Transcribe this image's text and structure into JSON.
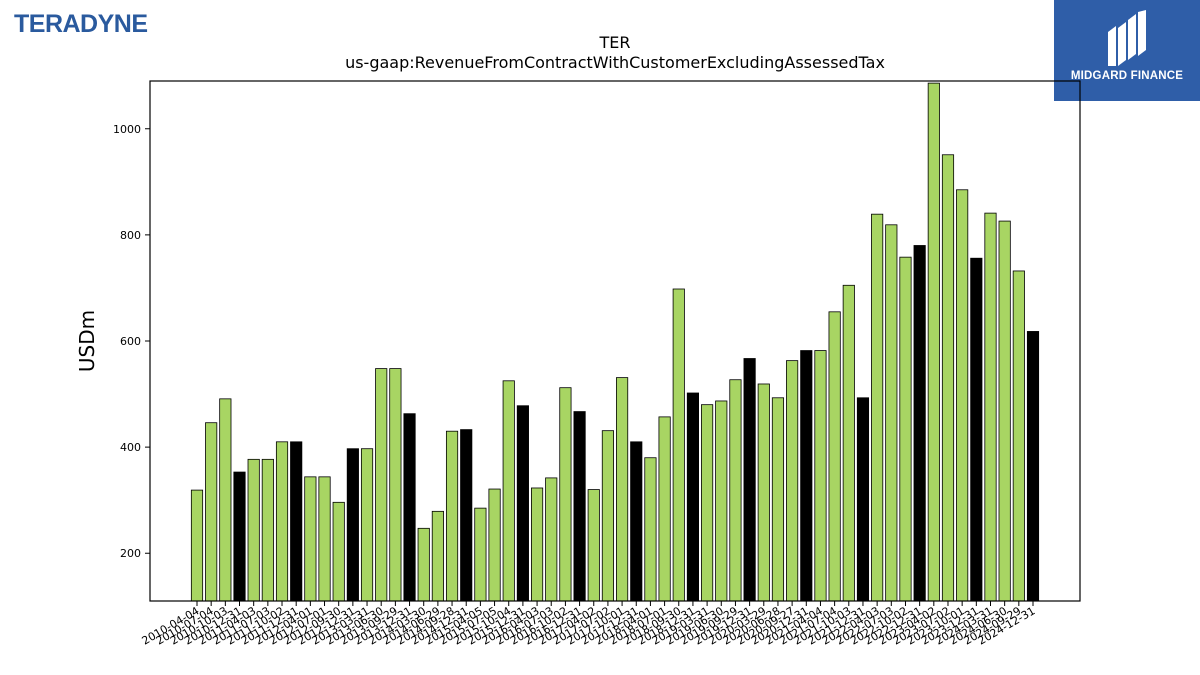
{
  "branding": {
    "company_logo_text": "TERADYNE",
    "partner_logo_text": "MIDGARD FINANCE"
  },
  "colors": {
    "bar_quarter": "#a8d563",
    "bar_year_end": "#000000",
    "bar_edge": "#000000",
    "partner_bg": "#2f5ea8",
    "company_logo": "#2a5a9e"
  },
  "chart_data": {
    "type": "bar",
    "title": "TER",
    "subtitle": "us-gaap:RevenueFromContractWithCustomerExcludingAssessedTax",
    "ylabel": "USDm",
    "xlabel": "",
    "ylim": [
      110,
      1090
    ],
    "yticks": [
      200,
      400,
      600,
      800,
      1000
    ],
    "grid": false,
    "categories": [
      "2010-04-04",
      "2010-07-04",
      "2010-10-03",
      "2010-12-31",
      "2011-04-03",
      "2011-07-03",
      "2011-10-02",
      "2011-12-31",
      "2012-04-01",
      "2012-07-01",
      "2012-09-30",
      "2012-12-31",
      "2013-03-31",
      "2013-06-30",
      "2013-09-29",
      "2013-12-31",
      "2014-03-30",
      "2014-06-29",
      "2014-09-28",
      "2014-12-31",
      "2015-04-05",
      "2015-07-05",
      "2015-10-04",
      "2015-12-31",
      "2016-04-03",
      "2016-07-03",
      "2016-10-02",
      "2016-12-31",
      "2017-04-02",
      "2017-07-02",
      "2017-10-01",
      "2017-12-31",
      "2018-04-01",
      "2018-07-01",
      "2018-09-30",
      "2018-12-31",
      "2019-03-31",
      "2019-06-30",
      "2019-09-29",
      "2019-12-31",
      "2020-03-29",
      "2020-06-28",
      "2020-09-27",
      "2020-12-31",
      "2021-04-04",
      "2021-07-04",
      "2021-10-03",
      "2021-12-31",
      "2022-04-03",
      "2022-07-03",
      "2022-10-02",
      "2022-12-31",
      "2023-04-02",
      "2023-07-02",
      "2023-10-01",
      "2023-12-31",
      "2024-03-31",
      "2024-06-30",
      "2024-09-29",
      "2024-12-31"
    ],
    "values": [
      319,
      446,
      491,
      353,
      377,
      377,
      410,
      410,
      344,
      344,
      296,
      397,
      397,
      548,
      548,
      463,
      247,
      279,
      430,
      433,
      285,
      321,
      525,
      478,
      323,
      342,
      512,
      467,
      320,
      431,
      531,
      410,
      380,
      457,
      698,
      502,
      480,
      487,
      527,
      567,
      519,
      493,
      563,
      582,
      582,
      655,
      705,
      493,
      839,
      819,
      758,
      780,
      1086,
      951,
      885,
      756,
      841,
      826,
      732,
      618
    ],
    "year_end": [
      false,
      false,
      false,
      true,
      false,
      false,
      false,
      true,
      false,
      false,
      false,
      true,
      false,
      false,
      false,
      true,
      false,
      false,
      false,
      true,
      false,
      false,
      false,
      true,
      false,
      false,
      false,
      true,
      false,
      false,
      false,
      true,
      false,
      false,
      false,
      true,
      false,
      false,
      false,
      true,
      false,
      false,
      false,
      true,
      false,
      false,
      false,
      true,
      false,
      false,
      false,
      true,
      false,
      false,
      false,
      true,
      false,
      false,
      false,
      true
    ]
  }
}
